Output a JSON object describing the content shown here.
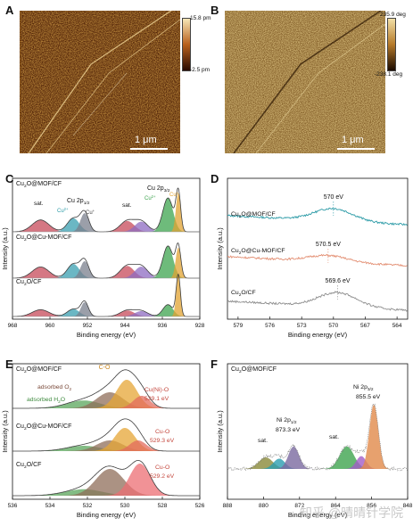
{
  "panels": {
    "A": {
      "letter": "A",
      "colorbar_max": "15.8 pm",
      "colorbar_min": "-2.5 pm",
      "scalebar": "1 μm"
    },
    "B": {
      "letter": "B",
      "colorbar_max": "235.9 deg",
      "colorbar_min": "-238.1 deg",
      "scalebar": "1 μm"
    },
    "C": {
      "letter": "C"
    },
    "D": {
      "letter": "D"
    },
    "E": {
      "letter": "E"
    },
    "F": {
      "letter": "F"
    }
  },
  "colors": {
    "afm_height_top": "#f6e7b8",
    "afm_height_bottom": "#2a0a00",
    "afm_phase_top": "#f2dfa6",
    "afm_phase_bottom": "#1b0a00",
    "spectrum_fit": "#3c3c3c",
    "cu_sample_1": "#2a9aa6",
    "cu_sample_2": "#e38f73",
    "cu_sample_3": "#8d8d8d"
  },
  "watermark": "知乎 @晴晴针学院",
  "chart_data": [
    {
      "panel": "C",
      "type": "area",
      "xlabel": "Binding energy (eV)",
      "ylabel": "Intensity (a.u.)",
      "xlim": [
        968,
        928
      ],
      "xticks": [
        "968",
        "960",
        "952",
        "944",
        "936",
        "928"
      ],
      "series": [
        {
          "name": "Cu2O@MOF/CF",
          "label_main": "Cu",
          "label_sub": "2",
          "label_rest": "O@MOF/CF"
        },
        {
          "name": "Cu2O@Cu-MOF/CF",
          "label_main": "Cu",
          "label_sub": "2",
          "label_rest": "O@Cu-MOF/CF"
        },
        {
          "name": "Cu2O/CF",
          "label_main": "Cu",
          "label_sub": "2",
          "label_rest": "O/CF"
        }
      ],
      "annotations": {
        "sat": "sat.",
        "sat2": "sat.",
        "cu2p12": "Cu 2p",
        "cu2p12_sub": "1/2",
        "cu2p32": "Cu 2p",
        "cu2p32_sub": "3/2",
        "cu2plus": "Cu",
        "cu2plus_sup": "2+",
        "cuplus": "Cu",
        "cuplus_sup": "+",
        "cu2plus_b": "Cu",
        "cu2plus_b_sup": "2+",
        "cuplus_b": "Cu",
        "cuplus_b_sup": "+"
      },
      "peaks": [
        {
          "series": "Cu2O@MOF/CF",
          "center": 962,
          "height": 0.35,
          "width": 1.8,
          "color": "#c7495a"
        },
        {
          "series": "Cu2O@MOF/CF",
          "center": 955,
          "height": 0.4,
          "width": 1.3,
          "color": "#3a9fb0"
        },
        {
          "series": "Cu2O@MOF/CF",
          "center": 952.6,
          "height": 0.55,
          "width": 0.9,
          "color": "#7a7f8c"
        },
        {
          "series": "Cu2O@MOF/CF",
          "center": 943.5,
          "height": 0.32,
          "width": 1.5,
          "color": "#c7495a"
        },
        {
          "series": "Cu2O@MOF/CF",
          "center": 940.5,
          "height": 0.3,
          "width": 1.4,
          "color": "#8e6bc2"
        },
        {
          "series": "Cu2O@MOF/CF",
          "center": 934.8,
          "height": 1.0,
          "width": 1.1,
          "color": "#3ea44f"
        },
        {
          "series": "Cu2O@MOF/CF",
          "center": 932.6,
          "height": 1.15,
          "width": 0.5,
          "color": "#e1a331"
        },
        {
          "series": "Cu2O@Cu-MOF/CF",
          "center": 962,
          "height": 0.33,
          "width": 1.8,
          "color": "#c7495a"
        },
        {
          "series": "Cu2O@Cu-MOF/CF",
          "center": 955,
          "height": 0.42,
          "width": 1.3,
          "color": "#3a9fb0"
        },
        {
          "series": "Cu2O@Cu-MOF/CF",
          "center": 952.6,
          "height": 0.5,
          "width": 0.9,
          "color": "#7a7f8c"
        },
        {
          "series": "Cu2O@Cu-MOF/CF",
          "center": 943.5,
          "height": 0.36,
          "width": 1.5,
          "color": "#c7495a"
        },
        {
          "series": "Cu2O@Cu-MOF/CF",
          "center": 940.5,
          "height": 0.34,
          "width": 1.4,
          "color": "#8e6bc2"
        },
        {
          "series": "Cu2O@Cu-MOF/CF",
          "center": 934.8,
          "height": 0.95,
          "width": 1.1,
          "color": "#3ea44f"
        },
        {
          "series": "Cu2O@Cu-MOF/CF",
          "center": 932.6,
          "height": 0.9,
          "width": 0.55,
          "color": "#e1a331"
        },
        {
          "series": "Cu2O/CF",
          "center": 962,
          "height": 0.2,
          "width": 1.8,
          "color": "#c7495a"
        },
        {
          "series": "Cu2O/CF",
          "center": 955,
          "height": 0.22,
          "width": 1.3,
          "color": "#3a9fb0"
        },
        {
          "series": "Cu2O/CF",
          "center": 952.6,
          "height": 0.42,
          "width": 0.8,
          "color": "#7a7f8c"
        },
        {
          "series": "Cu2O/CF",
          "center": 943.5,
          "height": 0.18,
          "width": 1.5,
          "color": "#c7495a"
        },
        {
          "series": "Cu2O/CF",
          "center": 940.5,
          "height": 0.16,
          "width": 1.4,
          "color": "#8e6bc2"
        },
        {
          "series": "Cu2O/CF",
          "center": 934.8,
          "height": 0.35,
          "width": 1.1,
          "color": "#3ea44f"
        },
        {
          "series": "Cu2O/CF",
          "center": 932.6,
          "height": 1.2,
          "width": 0.45,
          "color": "#e1a331"
        }
      ]
    },
    {
      "panel": "D",
      "type": "line",
      "xlabel": "Binding energy (eV)",
      "ylabel": "Intensity (a.u.)",
      "xlim": [
        580,
        563
      ],
      "xticks": [
        "579",
        "576",
        "573",
        "570",
        "567",
        "564"
      ],
      "series": [
        {
          "name": "Cu2O@MOF/CF",
          "label_main": "Cu",
          "label_sub": "2",
          "label_rest": "O@MOF/CF",
          "peak_label": "570 eV",
          "peak_x": 570.0
        },
        {
          "name": "Cu2O@Cu-MOF/CF",
          "label_main": "Cu",
          "label_sub": "2",
          "label_rest": "O@Cu-MOF/CF",
          "peak_label": "570.5 eV",
          "peak_x": 570.5
        },
        {
          "name": "Cu2O/CF",
          "label_main": "Cu",
          "label_sub": "2",
          "label_rest": "O/CF",
          "peak_label": "569.6 eV",
          "peak_x": 569.6
        }
      ]
    },
    {
      "panel": "E",
      "type": "area",
      "xlabel": "Binding energy (eV)",
      "ylabel": "Intensity (a.u.)",
      "xlim": [
        536,
        526
      ],
      "xticks": [
        "536",
        "534",
        "532",
        "530",
        "528",
        "526"
      ],
      "series": [
        {
          "name": "Cu2O@MOF/CF",
          "label_main": "Cu",
          "label_sub": "2",
          "label_rest": "O@MOF/CF"
        },
        {
          "name": "Cu2O@Cu-MOF/CF",
          "label_main": "Cu",
          "label_sub": "2",
          "label_rest": "O@Cu-MOF/CF"
        },
        {
          "name": "Cu2O/CF",
          "label_main": "Cu",
          "label_sub": "2",
          "label_rest": "O/CF"
        }
      ],
      "annotations": {
        "co": "C-O",
        "adsorbed_o2": "adsorbed O",
        "adsorbed_o2_sub": "2",
        "adsorbed_h2o": "adsorbed H",
        "adsorbed_h2o_sub": "2",
        "adsorbed_h2o_rest": "O",
        "cu_ni_o": "Cu(Ni)-O",
        "cu_ni_o_ev": "529.1 eV",
        "cu_o_2": "Cu-O",
        "cu_o_2_ev": "529.3 eV",
        "cu_o_3": "Cu-O",
        "cu_o_3_ev": "529.2 eV"
      },
      "peaks": [
        {
          "series": "Cu2O@MOF/CF",
          "center": 532.2,
          "height": 0.22,
          "width": 0.9,
          "color": "#5aa65b"
        },
        {
          "series": "Cu2O@MOF/CF",
          "center": 530.8,
          "height": 0.45,
          "width": 0.7,
          "color": "#8f6d5a"
        },
        {
          "series": "Cu2O@MOF/CF",
          "center": 529.9,
          "height": 0.8,
          "width": 0.55,
          "color": "#e5a535"
        },
        {
          "series": "Cu2O@MOF/CF",
          "center": 529.1,
          "height": 0.35,
          "width": 0.45,
          "color": "#e36b5c"
        },
        {
          "series": "Cu2O@Cu-MOF/CF",
          "center": 532.2,
          "height": 0.15,
          "width": 0.9,
          "color": "#5aa65b"
        },
        {
          "series": "Cu2O@Cu-MOF/CF",
          "center": 530.8,
          "height": 0.3,
          "width": 0.7,
          "color": "#8f6d5a"
        },
        {
          "series": "Cu2O@Cu-MOF/CF",
          "center": 530.0,
          "height": 0.65,
          "width": 0.55,
          "color": "#e5a535"
        },
        {
          "series": "Cu2O@Cu-MOF/CF",
          "center": 529.3,
          "height": 0.3,
          "width": 0.45,
          "color": "#e36b5c"
        },
        {
          "series": "Cu2O/CF",
          "center": 532.2,
          "height": 0.18,
          "width": 1.0,
          "color": "#5aa65b"
        },
        {
          "series": "Cu2O/CF",
          "center": 530.8,
          "height": 0.75,
          "width": 0.75,
          "color": "#8f6d5a"
        },
        {
          "series": "Cu2O/CF",
          "center": 529.2,
          "height": 0.9,
          "width": 0.55,
          "color": "#ec6d73"
        }
      ]
    },
    {
      "panel": "F",
      "type": "area",
      "xlabel": "Binding energy (eV)",
      "ylabel": "Intensity (a.u.)",
      "xlim": [
        888,
        848
      ],
      "xticks": [
        "888",
        "880",
        "872",
        "864",
        "856",
        "848"
      ],
      "series": [
        {
          "name": "Cu2O@MOF/CF",
          "label_main": "Cu",
          "label_sub": "2",
          "label_rest": "O@MOF/CF"
        }
      ],
      "annotations": {
        "ni2p32": "Ni 2p",
        "ni2p32_sub": "3/2",
        "ni2p32_ev": "855.5 eV",
        "ni2p12": "Ni 2p",
        "ni2p12_sub": "1/2",
        "ni2p12_ev": "873.3 eV",
        "sat1": "sat.",
        "sat2": "sat."
      },
      "peaks": [
        {
          "center": 879.5,
          "height": 0.18,
          "width": 1.6,
          "color": "#8a8a3a"
        },
        {
          "center": 876.5,
          "height": 0.16,
          "width": 1.3,
          "color": "#2a9eb0"
        },
        {
          "center": 873.3,
          "height": 0.35,
          "width": 1.2,
          "color": "#7a6aa0"
        },
        {
          "center": 861.5,
          "height": 0.35,
          "width": 1.6,
          "color": "#3ea44f"
        },
        {
          "center": 858.3,
          "height": 0.2,
          "width": 1.1,
          "color": "#a35dc7"
        },
        {
          "center": 855.5,
          "height": 1.0,
          "width": 1.0,
          "color": "#e18a4a"
        }
      ]
    }
  ]
}
